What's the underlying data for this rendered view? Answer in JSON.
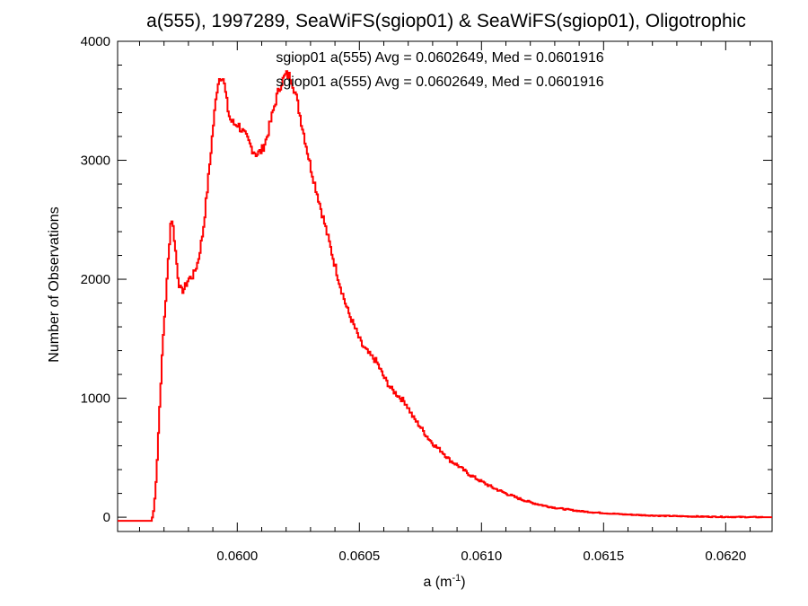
{
  "chart_data": {
    "type": "histogram",
    "title": "a(555), 1997289, SeaWiFS(sgiop01) & SeaWiFS(sgiop01), Oligotrophic",
    "xlabel_base": "a (m",
    "xlabel_sup": "-1",
    "xlabel_close": ")",
    "ylabel": "Number of Observations",
    "xlim": [
      0.05951,
      0.06219
    ],
    "ylim": [
      -120,
      4000
    ],
    "x_ticks": [
      0.06,
      0.0605,
      0.061,
      0.0615,
      0.062
    ],
    "x_tick_labels": [
      "0.0600",
      "0.0605",
      "0.0610",
      "0.0615",
      "0.0620"
    ],
    "y_ticks": [
      0,
      1000,
      2000,
      3000,
      4000
    ],
    "y_tick_labels": [
      "0",
      "1000",
      "2000",
      "3000",
      "4000"
    ],
    "annotations": [
      {
        "text": "sgiop01 a(555) Avg = 0.0602649, Med = 0.0601916",
        "color": "#000000"
      },
      {
        "text": "sgiop01 a(555) Avg = 0.0602649, Med = 0.0601916",
        "color": "#ff0000"
      }
    ],
    "series": [
      {
        "color": "#ff0000",
        "x": [
          0.05951,
          0.05965,
          0.05966,
          0.05967,
          0.05968,
          0.05969,
          0.0597,
          0.05971,
          0.05972,
          0.05973,
          0.05974,
          0.05975,
          0.05976,
          0.05977,
          0.05978,
          0.05979,
          0.0598,
          0.05982,
          0.05984,
          0.05986,
          0.05988,
          0.0599,
          0.05992,
          0.05993,
          0.05994,
          0.05995,
          0.05996,
          0.05997,
          0.05998,
          0.05999,
          0.06,
          0.06002,
          0.06004,
          0.06006,
          0.06008,
          0.0601,
          0.06012,
          0.06014,
          0.06016,
          0.06018,
          0.0602,
          0.06022,
          0.06024,
          0.06026,
          0.06028,
          0.0603,
          0.06033,
          0.06036,
          0.06039,
          0.06042,
          0.06045,
          0.06048,
          0.06051,
          0.06054,
          0.06057,
          0.0606,
          0.06063,
          0.06066,
          0.06069,
          0.06072,
          0.06075,
          0.06078,
          0.06081,
          0.06084,
          0.06087,
          0.0609,
          0.06095,
          0.061,
          0.06105,
          0.0611,
          0.06115,
          0.0612,
          0.06125,
          0.0613,
          0.06135,
          0.0614,
          0.06145,
          0.0615,
          0.06155,
          0.0616,
          0.06165,
          0.0617,
          0.06175,
          0.0618,
          0.06185,
          0.0619,
          0.06195,
          0.062,
          0.06205,
          0.0621,
          0.06215,
          0.06219
        ],
        "values": [
          -30,
          -30,
          80,
          380,
          820,
          1250,
          1620,
          1900,
          2250,
          2540,
          2400,
          2180,
          1980,
          1900,
          1910,
          1950,
          2000,
          2030,
          2150,
          2400,
          2800,
          3250,
          3650,
          3700,
          3720,
          3600,
          3450,
          3350,
          3320,
          3300,
          3310,
          3250,
          3180,
          3100,
          3050,
          3080,
          3180,
          3350,
          3520,
          3650,
          3720,
          3700,
          3550,
          3350,
          3150,
          2950,
          2700,
          2450,
          2200,
          1960,
          1750,
          1600,
          1450,
          1370,
          1310,
          1180,
          1080,
          1020,
          960,
          840,
          760,
          670,
          600,
          550,
          480,
          440,
          360,
          300,
          245,
          200,
          160,
          125,
          100,
          80,
          65,
          52,
          42,
          35,
          28,
          22,
          18,
          14,
          11,
          9,
          7,
          5,
          4,
          3,
          2,
          1,
          0,
          0
        ]
      }
    ]
  }
}
